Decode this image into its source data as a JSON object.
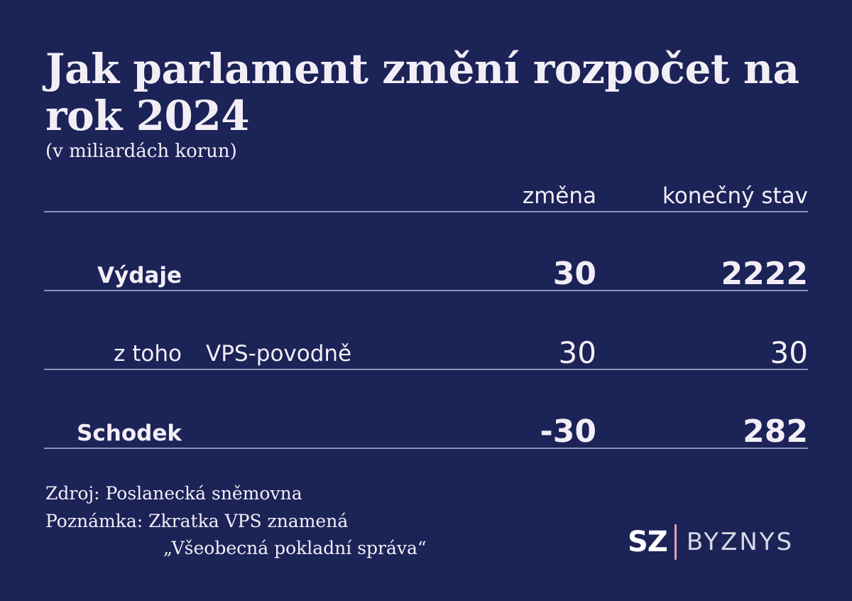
{
  "header": {
    "title": "Jak parlament změní rozpočet na rok 2024",
    "subtitle": "(v miliardách korun)"
  },
  "columns": {
    "change": "změna",
    "final": "konečný stav"
  },
  "chart_data": {
    "type": "table",
    "title": "Jak parlament změní rozpočet na rok 2024",
    "subtitle": "(v miliardách korun)",
    "columns": [
      "změna",
      "konečný stav"
    ],
    "rows": [
      {
        "label": "Výdaje",
        "sublabel": "",
        "change": "30",
        "final": "2222"
      },
      {
        "label": "z toho",
        "sublabel": "VPS-povodně",
        "change": "30",
        "final": "30"
      },
      {
        "label": "Schodek",
        "sublabel": "",
        "change": "-30",
        "final": "282"
      }
    ]
  },
  "footer": {
    "source": "Zdroj: Poslanecká sněmovna",
    "note_line1": "Poznámka: Zkratka VPS znamená",
    "note_line2": "„Všeobecná pokladní správa“"
  },
  "logo": {
    "mark": "SZ",
    "section": "BYZNYS",
    "accent_color": "#d9a6b0"
  },
  "colors": {
    "background": "#1b2357",
    "text": "#f3eef6",
    "rule": "#8d93b8"
  }
}
